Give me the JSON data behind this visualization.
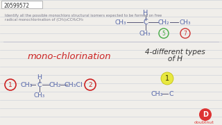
{
  "bg_color": "#f0eeea",
  "line_color": "#c8ccd8",
  "id_text": "20599572",
  "question_line1": "Identify all the possible monochloro structural isomers expected to be formed on free",
  "question_line2": "radical monochlorination of (CH₃)₃CCH₂CH₃",
  "text_color_dark": "#555566",
  "text_color_blue": "#5566aa",
  "text_color_red": "#cc2222",
  "text_color_green": "#338833",
  "mono_chlor": "mono-chlorination",
  "diff_types_line1": "4-different types",
  "diff_types_line2": "of H",
  "circle5_color": "#44aa44",
  "circle7_color": "#cc3333",
  "circle1_color": "#cc2222",
  "circle2_color": "#cc2222",
  "circle1b_color": "#dddd00",
  "doubtnut_red": "#dd3333",
  "doubtnut_text": "doubtnut"
}
